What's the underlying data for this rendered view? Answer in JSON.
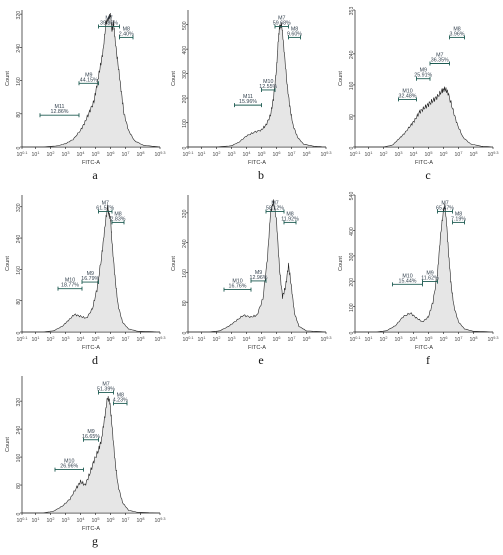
{
  "chart_data": [
    {
      "id": "a",
      "type": "area",
      "letter": "a",
      "xlabel": "FITC-A",
      "ylabel": "Count",
      "xlog": true,
      "xticks": [
        "10^0.1",
        "10^1",
        "10^2",
        "10^3",
        "10^4",
        "10^5",
        "10^6",
        "10^7",
        "10^8",
        "10^9.3"
      ],
      "yticks": [
        "0",
        "80",
        "160",
        "240",
        "320"
      ],
      "ylim": [
        0,
        330
      ],
      "markers": [
        {
          "name": "M11",
          "pct": "12.86%",
          "range": [
            1.3,
            3.9
          ]
        },
        {
          "name": "M9",
          "pct": "44.15%",
          "range": [
            3.9,
            5.2
          ]
        },
        {
          "name": "M7",
          "pct": "39.86%",
          "range": [
            5.2,
            6.6
          ]
        },
        {
          "name": "M8",
          "pct": "2.40%",
          "range": [
            6.6,
            7.5
          ]
        }
      ],
      "x": [
        0.1,
        1.5,
        2.5,
        3.0,
        3.5,
        4.0,
        4.3,
        4.6,
        4.9,
        5.1,
        5.3,
        5.5,
        5.7,
        5.9,
        6.0,
        6.1,
        6.2,
        6.3,
        6.5,
        6.7,
        6.9,
        7.2,
        7.6,
        8.2,
        9.3
      ],
      "y": [
        0,
        0,
        3,
        8,
        18,
        40,
        60,
        85,
        110,
        150,
        190,
        230,
        300,
        310,
        320,
        280,
        300,
        260,
        200,
        140,
        80,
        40,
        15,
        4,
        0
      ]
    },
    {
      "id": "b",
      "type": "area",
      "letter": "b",
      "xlabel": "FITC-A",
      "ylabel": "Count",
      "xlog": true,
      "xticks": [
        "10^0.1",
        "10^1",
        "10^2",
        "10^3",
        "10^4",
        "10^5",
        "10^6",
        "10^7",
        "10^8",
        "10^9.3"
      ],
      "yticks": [
        "0",
        "100",
        "200",
        "300",
        "400",
        "500"
      ],
      "ylim": [
        0,
        560
      ],
      "markers": [
        {
          "name": "M11",
          "pct": "15.96%",
          "range": [
            3.2,
            5.0
          ]
        },
        {
          "name": "M10",
          "pct": "12.55%",
          "range": [
            5.0,
            5.9
          ]
        },
        {
          "name": "M7",
          "pct": "59.68%",
          "range": [
            5.9,
            6.8
          ]
        },
        {
          "name": "M8",
          "pct": "9.60%",
          "range": [
            6.8,
            7.6
          ]
        }
      ],
      "x": [
        0.1,
        2.0,
        3.0,
        3.5,
        4.0,
        4.5,
        5.0,
        5.3,
        5.6,
        5.8,
        6.0,
        6.1,
        6.2,
        6.35,
        6.5,
        6.7,
        6.9,
        7.1,
        7.4,
        7.8,
        8.5,
        9.3
      ],
      "y": [
        0,
        0,
        5,
        20,
        45,
        60,
        70,
        90,
        130,
        200,
        320,
        420,
        490,
        500,
        400,
        260,
        160,
        90,
        40,
        12,
        3,
        0
      ]
    },
    {
      "id": "c",
      "type": "area",
      "letter": "c",
      "xlabel": "FITC-A",
      "ylabel": "Count",
      "xlog": true,
      "xticks": [
        "10^0.1",
        "10^1",
        "10^2",
        "10^3",
        "10^4",
        "10^5",
        "10^6",
        "10^7",
        "10^8",
        "10^9.3"
      ],
      "yticks": [
        "0",
        "80",
        "160",
        "240",
        "353"
      ],
      "ylim": [
        0,
        353
      ],
      "markers": [
        {
          "name": "M10",
          "pct": "32.48%",
          "range": [
            3.0,
            4.2
          ]
        },
        {
          "name": "M9",
          "pct": "25.91%",
          "range": [
            4.2,
            5.1
          ]
        },
        {
          "name": "M7",
          "pct": "36.35%",
          "range": [
            5.1,
            6.4
          ]
        },
        {
          "name": "M8",
          "pct": "3.96%",
          "range": [
            6.4,
            7.4
          ]
        }
      ],
      "x": [
        0.1,
        2.0,
        2.6,
        3.0,
        3.4,
        3.8,
        4.1,
        4.4,
        4.7,
        5.0,
        5.3,
        5.6,
        5.9,
        6.1,
        6.3,
        6.6,
        6.9,
        7.3,
        7.8,
        8.5,
        9.3
      ],
      "y": [
        0,
        0,
        5,
        20,
        35,
        55,
        70,
        90,
        100,
        110,
        120,
        130,
        145,
        150,
        140,
        100,
        60,
        25,
        8,
        2,
        0
      ]
    },
    {
      "id": "d",
      "type": "area",
      "letter": "d",
      "xlabel": "FITC-A",
      "ylabel": "Count",
      "xlog": true,
      "xticks": [
        "10^0.1",
        "10^1",
        "10^2",
        "10^3",
        "10^4",
        "10^5",
        "10^6",
        "10^7",
        "10^8",
        "10^9.3"
      ],
      "yticks": [
        "0",
        "80",
        "160",
        "240",
        "320"
      ],
      "ylim": [
        0,
        350
      ],
      "markers": [
        {
          "name": "M10",
          "pct": "18.77%",
          "range": [
            2.5,
            4.1
          ]
        },
        {
          "name": "M9",
          "pct": "16.79%",
          "range": [
            4.1,
            5.2
          ]
        },
        {
          "name": "M7",
          "pct": "61.57%",
          "range": [
            5.2,
            6.1
          ]
        },
        {
          "name": "M8",
          "pct": "2.83%",
          "range": [
            6.1,
            6.9
          ]
        }
      ],
      "x": [
        0.1,
        1.5,
        2.2,
        2.8,
        3.2,
        3.6,
        4.0,
        4.4,
        4.8,
        5.1,
        5.4,
        5.6,
        5.8,
        5.9,
        6.0,
        6.1,
        6.3,
        6.5,
        6.8,
        7.2,
        7.8,
        9.3
      ],
      "y": [
        0,
        0,
        3,
        15,
        30,
        45,
        40,
        35,
        60,
        110,
        190,
        260,
        320,
        300,
        290,
        230,
        140,
        70,
        25,
        8,
        2,
        0
      ]
    },
    {
      "id": "e",
      "type": "area",
      "letter": "e",
      "xlabel": "FITC-A",
      "ylabel": "Count",
      "xlog": true,
      "xticks": [
        "10^0.1",
        "10^1",
        "10^2",
        "10^3",
        "10^4",
        "10^5",
        "10^6",
        "10^7",
        "10^8",
        "10^9.3"
      ],
      "yticks": [
        "0",
        "80",
        "160",
        "240",
        "320"
      ],
      "ylim": [
        0,
        368
      ],
      "markers": [
        {
          "name": "M10",
          "pct": "16.76%",
          "range": [
            2.5,
            4.3
          ]
        },
        {
          "name": "M9",
          "pct": "12.96%",
          "range": [
            4.3,
            5.3
          ]
        },
        {
          "name": "M7",
          "pct": "58.12%",
          "range": [
            5.3,
            6.5
          ]
        },
        {
          "name": "M8",
          "pct": "11.92%",
          "range": [
            6.5,
            7.3
          ]
        }
      ],
      "x": [
        0.1,
        1.5,
        2.2,
        2.8,
        3.3,
        3.8,
        4.3,
        4.7,
        5.1,
        5.4,
        5.6,
        5.8,
        6.0,
        6.2,
        6.4,
        6.6,
        6.8,
        7.0,
        7.2,
        7.5,
        8.0,
        9.3
      ],
      "y": [
        0,
        0,
        3,
        15,
        30,
        45,
        40,
        45,
        90,
        200,
        320,
        350,
        300,
        170,
        95,
        120,
        180,
        120,
        50,
        15,
        3,
        0
      ]
    },
    {
      "id": "f",
      "type": "area",
      "letter": "f",
      "xlabel": "FITC-A",
      "ylabel": "Count",
      "xlog": true,
      "xticks": [
        "10^0.1",
        "10^1",
        "10^2",
        "10^3",
        "10^4",
        "10^5",
        "10^6",
        "10^7",
        "10^8",
        "10^9.3"
      ],
      "yticks": [
        "0",
        "100",
        "200",
        "300",
        "400",
        "540"
      ],
      "ylim": [
        0,
        540
      ],
      "markers": [
        {
          "name": "M10",
          "pct": "15.44%",
          "range": [
            2.6,
            4.6
          ]
        },
        {
          "name": "M9",
          "pct": "11.62%",
          "range": [
            4.6,
            5.6
          ]
        },
        {
          "name": "M7",
          "pct": "65.47%",
          "range": [
            5.6,
            6.6
          ]
        },
        {
          "name": "M8",
          "pct": "7.19%",
          "range": [
            6.6,
            7.4
          ]
        }
      ],
      "x": [
        0.1,
        1.5,
        2.2,
        2.8,
        3.3,
        3.8,
        4.2,
        4.6,
        5.0,
        5.3,
        5.6,
        5.8,
        6.0,
        6.1,
        6.2,
        6.35,
        6.5,
        6.7,
        7.0,
        7.4,
        8.0,
        9.3
      ],
      "y": [
        0,
        0,
        5,
        25,
        60,
        75,
        55,
        40,
        60,
        120,
        230,
        380,
        480,
        500,
        430,
        300,
        190,
        100,
        40,
        12,
        3,
        0
      ]
    },
    {
      "id": "g",
      "type": "area",
      "letter": "g",
      "xlabel": "FITC-A",
      "ylabel": "Count",
      "xlog": true,
      "xticks": [
        "10^0.1",
        "10^1",
        "10^2",
        "10^3",
        "10^4",
        "10^5",
        "10^6",
        "10^7",
        "10^8",
        "10^9.3"
      ],
      "yticks": [
        "0",
        "80",
        "160",
        "240",
        "320"
      ],
      "ylim": [
        0,
        392
      ],
      "markers": [
        {
          "name": "M10",
          "pct": "26.96%",
          "range": [
            2.3,
            4.2
          ]
        },
        {
          "name": "M9",
          "pct": "16.65%",
          "range": [
            4.2,
            5.2
          ]
        },
        {
          "name": "M7",
          "pct": "51.39%",
          "range": [
            5.2,
            6.2
          ]
        },
        {
          "name": "M8",
          "pct": "4.23%",
          "range": [
            6.2,
            7.1
          ]
        }
      ],
      "x": [
        0.1,
        1.5,
        2.2,
        2.8,
        3.3,
        3.7,
        4.0,
        4.3,
        4.6,
        4.9,
        5.2,
        5.4,
        5.6,
        5.8,
        5.95,
        6.1,
        6.3,
        6.5,
        6.8,
        7.2,
        7.8,
        9.3
      ],
      "y": [
        0,
        0,
        5,
        20,
        40,
        70,
        90,
        80,
        110,
        150,
        180,
        210,
        270,
        330,
        320,
        250,
        150,
        80,
        30,
        8,
        2,
        0
      ]
    }
  ],
  "style": {
    "fill": "#e6e6e6",
    "stroke": "#222222",
    "axis": "#333333",
    "marker": "#1d5b52",
    "marker_text": "#33414e"
  }
}
